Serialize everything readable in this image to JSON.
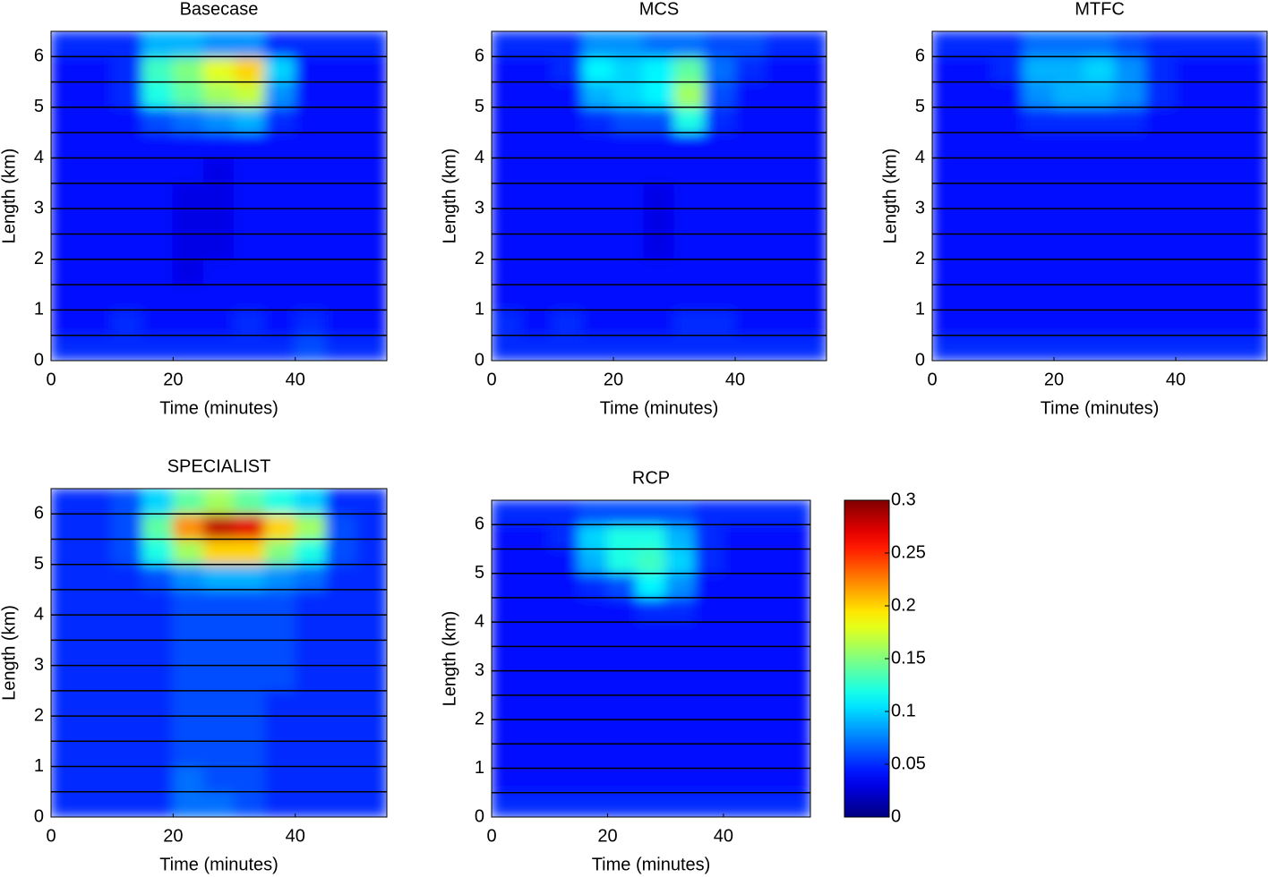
{
  "chart_data": [
    {
      "type": "heatmap",
      "title": "Basecase",
      "xlabel": "Time (minutes)",
      "ylabel": "Length (km)",
      "xbins": [
        0,
        5,
        10,
        15,
        20,
        25,
        30,
        35,
        40,
        45,
        50,
        55
      ],
      "ybins": [
        0,
        0.5,
        1,
        1.5,
        2,
        2.5,
        3,
        3.5,
        4,
        4.5,
        5,
        5.5,
        6,
        6.5
      ],
      "xlim": [
        0,
        55
      ],
      "ylim": [
        0,
        6.5
      ],
      "xticks": [
        0,
        20,
        40
      ],
      "yticks": [
        0,
        1,
        2,
        3,
        4,
        5,
        6
      ],
      "clim": [
        0,
        0.3
      ],
      "values": [
        [
          0.05,
          0.05,
          0.05,
          0.05,
          0.05,
          0.05,
          0.05,
          0.05,
          0.06,
          0.05,
          0.05
        ],
        [
          0.04,
          0.04,
          0.05,
          0.04,
          0.04,
          0.04,
          0.05,
          0.04,
          0.05,
          0.04,
          0.04
        ],
        [
          0.04,
          0.04,
          0.04,
          0.04,
          0.04,
          0.04,
          0.04,
          0.04,
          0.04,
          0.04,
          0.04
        ],
        [
          0.04,
          0.04,
          0.04,
          0.04,
          0.03,
          0.04,
          0.04,
          0.04,
          0.04,
          0.04,
          0.04
        ],
        [
          0.04,
          0.04,
          0.04,
          0.04,
          0.03,
          0.03,
          0.04,
          0.04,
          0.04,
          0.04,
          0.04
        ],
        [
          0.04,
          0.04,
          0.04,
          0.04,
          0.03,
          0.03,
          0.04,
          0.04,
          0.04,
          0.04,
          0.04
        ],
        [
          0.04,
          0.04,
          0.04,
          0.04,
          0.03,
          0.03,
          0.04,
          0.04,
          0.04,
          0.04,
          0.04
        ],
        [
          0.04,
          0.04,
          0.04,
          0.04,
          0.04,
          0.03,
          0.04,
          0.04,
          0.04,
          0.04,
          0.04
        ],
        [
          0.04,
          0.04,
          0.04,
          0.04,
          0.04,
          0.04,
          0.04,
          0.04,
          0.04,
          0.04,
          0.04
        ],
        [
          0.04,
          0.04,
          0.04,
          0.06,
          0.07,
          0.08,
          0.09,
          0.05,
          0.04,
          0.04,
          0.04
        ],
        [
          0.04,
          0.04,
          0.05,
          0.12,
          0.14,
          0.16,
          0.17,
          0.08,
          0.04,
          0.04,
          0.04
        ],
        [
          0.04,
          0.04,
          0.05,
          0.13,
          0.15,
          0.18,
          0.2,
          0.1,
          0.04,
          0.04,
          0.04
        ],
        [
          0.05,
          0.05,
          0.05,
          0.09,
          0.09,
          0.08,
          0.08,
          0.05,
          0.05,
          0.05,
          0.05
        ]
      ]
    },
    {
      "type": "heatmap",
      "title": "MCS",
      "xlabel": "Time (minutes)",
      "ylabel": "Length (km)",
      "xbins": [
        0,
        5,
        10,
        15,
        20,
        25,
        30,
        35,
        40,
        45,
        50,
        55
      ],
      "ybins": [
        0,
        0.5,
        1,
        1.5,
        2,
        2.5,
        3,
        3.5,
        4,
        4.5,
        5,
        5.5,
        6,
        6.5
      ],
      "xlim": [
        0,
        55
      ],
      "ylim": [
        0,
        6.5
      ],
      "xticks": [
        0,
        20,
        40
      ],
      "yticks": [
        0,
        1,
        2,
        3,
        4,
        5,
        6
      ],
      "clim": [
        0,
        0.3
      ],
      "values": [
        [
          0.05,
          0.05,
          0.05,
          0.05,
          0.05,
          0.05,
          0.05,
          0.05,
          0.05,
          0.05,
          0.05
        ],
        [
          0.05,
          0.04,
          0.05,
          0.04,
          0.04,
          0.04,
          0.05,
          0.05,
          0.04,
          0.04,
          0.04
        ],
        [
          0.04,
          0.04,
          0.04,
          0.04,
          0.04,
          0.04,
          0.04,
          0.04,
          0.04,
          0.04,
          0.04
        ],
        [
          0.04,
          0.04,
          0.04,
          0.04,
          0.04,
          0.04,
          0.04,
          0.04,
          0.04,
          0.04,
          0.04
        ],
        [
          0.04,
          0.04,
          0.04,
          0.04,
          0.04,
          0.03,
          0.04,
          0.04,
          0.04,
          0.04,
          0.04
        ],
        [
          0.04,
          0.04,
          0.04,
          0.04,
          0.04,
          0.03,
          0.04,
          0.04,
          0.04,
          0.04,
          0.04
        ],
        [
          0.04,
          0.04,
          0.04,
          0.04,
          0.04,
          0.03,
          0.04,
          0.04,
          0.04,
          0.04,
          0.04
        ],
        [
          0.04,
          0.04,
          0.04,
          0.04,
          0.04,
          0.04,
          0.04,
          0.04,
          0.04,
          0.04,
          0.04
        ],
        [
          0.04,
          0.04,
          0.04,
          0.04,
          0.04,
          0.04,
          0.04,
          0.04,
          0.04,
          0.04,
          0.04
        ],
        [
          0.04,
          0.04,
          0.04,
          0.05,
          0.06,
          0.06,
          0.12,
          0.05,
          0.04,
          0.04,
          0.04
        ],
        [
          0.04,
          0.04,
          0.04,
          0.09,
          0.1,
          0.11,
          0.16,
          0.06,
          0.04,
          0.04,
          0.04
        ],
        [
          0.04,
          0.04,
          0.05,
          0.11,
          0.1,
          0.11,
          0.14,
          0.07,
          0.05,
          0.04,
          0.04
        ],
        [
          0.05,
          0.05,
          0.05,
          0.08,
          0.08,
          0.07,
          0.07,
          0.06,
          0.06,
          0.05,
          0.05
        ]
      ]
    },
    {
      "type": "heatmap",
      "title": "MTFC",
      "xlabel": "Time (minutes)",
      "ylabel": "Length (km)",
      "xbins": [
        0,
        5,
        10,
        15,
        20,
        25,
        30,
        35,
        40,
        45,
        50,
        55
      ],
      "ybins": [
        0,
        0.5,
        1,
        1.5,
        2,
        2.5,
        3,
        3.5,
        4,
        4.5,
        5,
        5.5,
        6,
        6.5
      ],
      "xlim": [
        0,
        55
      ],
      "ylim": [
        0,
        6.5
      ],
      "xticks": [
        0,
        20,
        40
      ],
      "yticks": [
        0,
        1,
        2,
        3,
        4,
        5,
        6
      ],
      "clim": [
        0,
        0.3
      ],
      "values": [
        [
          0.05,
          0.05,
          0.05,
          0.05,
          0.05,
          0.05,
          0.05,
          0.05,
          0.05,
          0.05,
          0.05
        ],
        [
          0.04,
          0.04,
          0.04,
          0.04,
          0.04,
          0.04,
          0.04,
          0.04,
          0.04,
          0.04,
          0.04
        ],
        [
          0.04,
          0.04,
          0.04,
          0.04,
          0.04,
          0.04,
          0.04,
          0.04,
          0.04,
          0.04,
          0.04
        ],
        [
          0.04,
          0.04,
          0.04,
          0.04,
          0.04,
          0.04,
          0.04,
          0.04,
          0.04,
          0.04,
          0.04
        ],
        [
          0.04,
          0.04,
          0.04,
          0.04,
          0.04,
          0.04,
          0.04,
          0.04,
          0.04,
          0.04,
          0.04
        ],
        [
          0.04,
          0.04,
          0.04,
          0.04,
          0.04,
          0.04,
          0.04,
          0.04,
          0.04,
          0.04,
          0.04
        ],
        [
          0.04,
          0.04,
          0.04,
          0.04,
          0.04,
          0.04,
          0.04,
          0.04,
          0.04,
          0.04,
          0.04
        ],
        [
          0.04,
          0.04,
          0.04,
          0.04,
          0.04,
          0.04,
          0.04,
          0.04,
          0.04,
          0.04,
          0.04
        ],
        [
          0.04,
          0.04,
          0.04,
          0.04,
          0.04,
          0.04,
          0.04,
          0.04,
          0.04,
          0.04,
          0.04
        ],
        [
          0.04,
          0.04,
          0.04,
          0.05,
          0.05,
          0.05,
          0.05,
          0.04,
          0.04,
          0.04,
          0.04
        ],
        [
          0.04,
          0.04,
          0.04,
          0.08,
          0.09,
          0.09,
          0.08,
          0.05,
          0.04,
          0.04,
          0.04
        ],
        [
          0.04,
          0.04,
          0.05,
          0.09,
          0.09,
          0.1,
          0.08,
          0.05,
          0.04,
          0.04,
          0.04
        ],
        [
          0.05,
          0.05,
          0.05,
          0.07,
          0.07,
          0.07,
          0.06,
          0.05,
          0.05,
          0.05,
          0.05
        ]
      ]
    },
    {
      "type": "heatmap",
      "title": "SPECIALIST",
      "xlabel": "Time (minutes)",
      "ylabel": "Length (km)",
      "xbins": [
        0,
        5,
        10,
        15,
        20,
        25,
        30,
        35,
        40,
        45,
        50,
        55
      ],
      "ybins": [
        0,
        0.5,
        1,
        1.5,
        2,
        2.5,
        3,
        3.5,
        4,
        4.5,
        5,
        5.5,
        6,
        6.5
      ],
      "xlim": [
        0,
        55
      ],
      "ylim": [
        0,
        6.5
      ],
      "xticks": [
        0,
        20,
        40
      ],
      "yticks": [
        0,
        1,
        2,
        3,
        4,
        5,
        6
      ],
      "clim": [
        0,
        0.3
      ],
      "values": [
        [
          0.05,
          0.05,
          0.05,
          0.05,
          0.07,
          0.07,
          0.06,
          0.05,
          0.05,
          0.05,
          0.05
        ],
        [
          0.05,
          0.05,
          0.05,
          0.05,
          0.07,
          0.06,
          0.06,
          0.05,
          0.05,
          0.05,
          0.05
        ],
        [
          0.05,
          0.05,
          0.05,
          0.05,
          0.06,
          0.06,
          0.06,
          0.05,
          0.05,
          0.05,
          0.05
        ],
        [
          0.05,
          0.05,
          0.05,
          0.05,
          0.06,
          0.06,
          0.06,
          0.05,
          0.05,
          0.05,
          0.05
        ],
        [
          0.05,
          0.05,
          0.05,
          0.05,
          0.06,
          0.06,
          0.06,
          0.05,
          0.05,
          0.05,
          0.05
        ],
        [
          0.05,
          0.05,
          0.05,
          0.05,
          0.06,
          0.06,
          0.06,
          0.06,
          0.05,
          0.05,
          0.05
        ],
        [
          0.05,
          0.05,
          0.05,
          0.05,
          0.06,
          0.06,
          0.06,
          0.06,
          0.05,
          0.05,
          0.05
        ],
        [
          0.05,
          0.05,
          0.05,
          0.05,
          0.06,
          0.06,
          0.06,
          0.06,
          0.05,
          0.05,
          0.05
        ],
        [
          0.05,
          0.05,
          0.05,
          0.05,
          0.06,
          0.06,
          0.06,
          0.06,
          0.05,
          0.05,
          0.05
        ],
        [
          0.05,
          0.05,
          0.05,
          0.06,
          0.08,
          0.09,
          0.09,
          0.08,
          0.07,
          0.05,
          0.05
        ],
        [
          0.05,
          0.05,
          0.06,
          0.12,
          0.16,
          0.2,
          0.2,
          0.15,
          0.12,
          0.06,
          0.05
        ],
        [
          0.05,
          0.05,
          0.06,
          0.14,
          0.22,
          0.28,
          0.27,
          0.2,
          0.16,
          0.06,
          0.05
        ],
        [
          0.05,
          0.05,
          0.06,
          0.1,
          0.14,
          0.16,
          0.14,
          0.12,
          0.1,
          0.05,
          0.05
        ]
      ]
    },
    {
      "type": "heatmap",
      "title": "RCP",
      "xlabel": "Time (minutes)",
      "ylabel": "Length (km)",
      "xbins": [
        0,
        5,
        10,
        15,
        20,
        25,
        30,
        35,
        40,
        45,
        50,
        55
      ],
      "ybins": [
        0,
        0.5,
        1,
        1.5,
        2,
        2.5,
        3,
        3.5,
        4,
        4.5,
        5,
        5.5,
        6,
        6.5
      ],
      "xlim": [
        0,
        55
      ],
      "ylim": [
        0,
        6.5
      ],
      "xticks": [
        0,
        20,
        40
      ],
      "yticks": [
        0,
        1,
        2,
        3,
        4,
        5,
        6
      ],
      "clim": [
        0,
        0.3
      ],
      "colorbar_ticks": [
        0,
        0.05,
        0.1,
        0.15,
        0.2,
        0.25,
        0.3
      ],
      "values": [
        [
          0.05,
          0.05,
          0.05,
          0.05,
          0.05,
          0.05,
          0.05,
          0.05,
          0.05,
          0.05,
          0.05
        ],
        [
          0.04,
          0.04,
          0.04,
          0.04,
          0.04,
          0.04,
          0.04,
          0.04,
          0.04,
          0.04,
          0.04
        ],
        [
          0.04,
          0.04,
          0.04,
          0.04,
          0.04,
          0.04,
          0.04,
          0.04,
          0.04,
          0.04,
          0.04
        ],
        [
          0.04,
          0.04,
          0.04,
          0.04,
          0.04,
          0.04,
          0.04,
          0.04,
          0.04,
          0.04,
          0.04
        ],
        [
          0.04,
          0.04,
          0.04,
          0.04,
          0.04,
          0.04,
          0.04,
          0.04,
          0.04,
          0.04,
          0.04
        ],
        [
          0.04,
          0.04,
          0.04,
          0.04,
          0.04,
          0.04,
          0.04,
          0.04,
          0.04,
          0.04,
          0.04
        ],
        [
          0.04,
          0.04,
          0.04,
          0.04,
          0.04,
          0.04,
          0.04,
          0.04,
          0.04,
          0.04,
          0.04
        ],
        [
          0.04,
          0.04,
          0.04,
          0.04,
          0.04,
          0.04,
          0.04,
          0.04,
          0.04,
          0.04,
          0.04
        ],
        [
          0.04,
          0.04,
          0.04,
          0.04,
          0.04,
          0.05,
          0.05,
          0.04,
          0.04,
          0.04,
          0.04
        ],
        [
          0.04,
          0.04,
          0.04,
          0.05,
          0.06,
          0.11,
          0.08,
          0.04,
          0.04,
          0.04,
          0.04
        ],
        [
          0.04,
          0.04,
          0.04,
          0.09,
          0.12,
          0.13,
          0.1,
          0.05,
          0.04,
          0.04,
          0.04
        ],
        [
          0.04,
          0.04,
          0.05,
          0.1,
          0.12,
          0.12,
          0.09,
          0.05,
          0.04,
          0.04,
          0.04
        ],
        [
          0.05,
          0.05,
          0.05,
          0.06,
          0.06,
          0.06,
          0.06,
          0.05,
          0.05,
          0.05,
          0.05
        ]
      ]
    }
  ]
}
